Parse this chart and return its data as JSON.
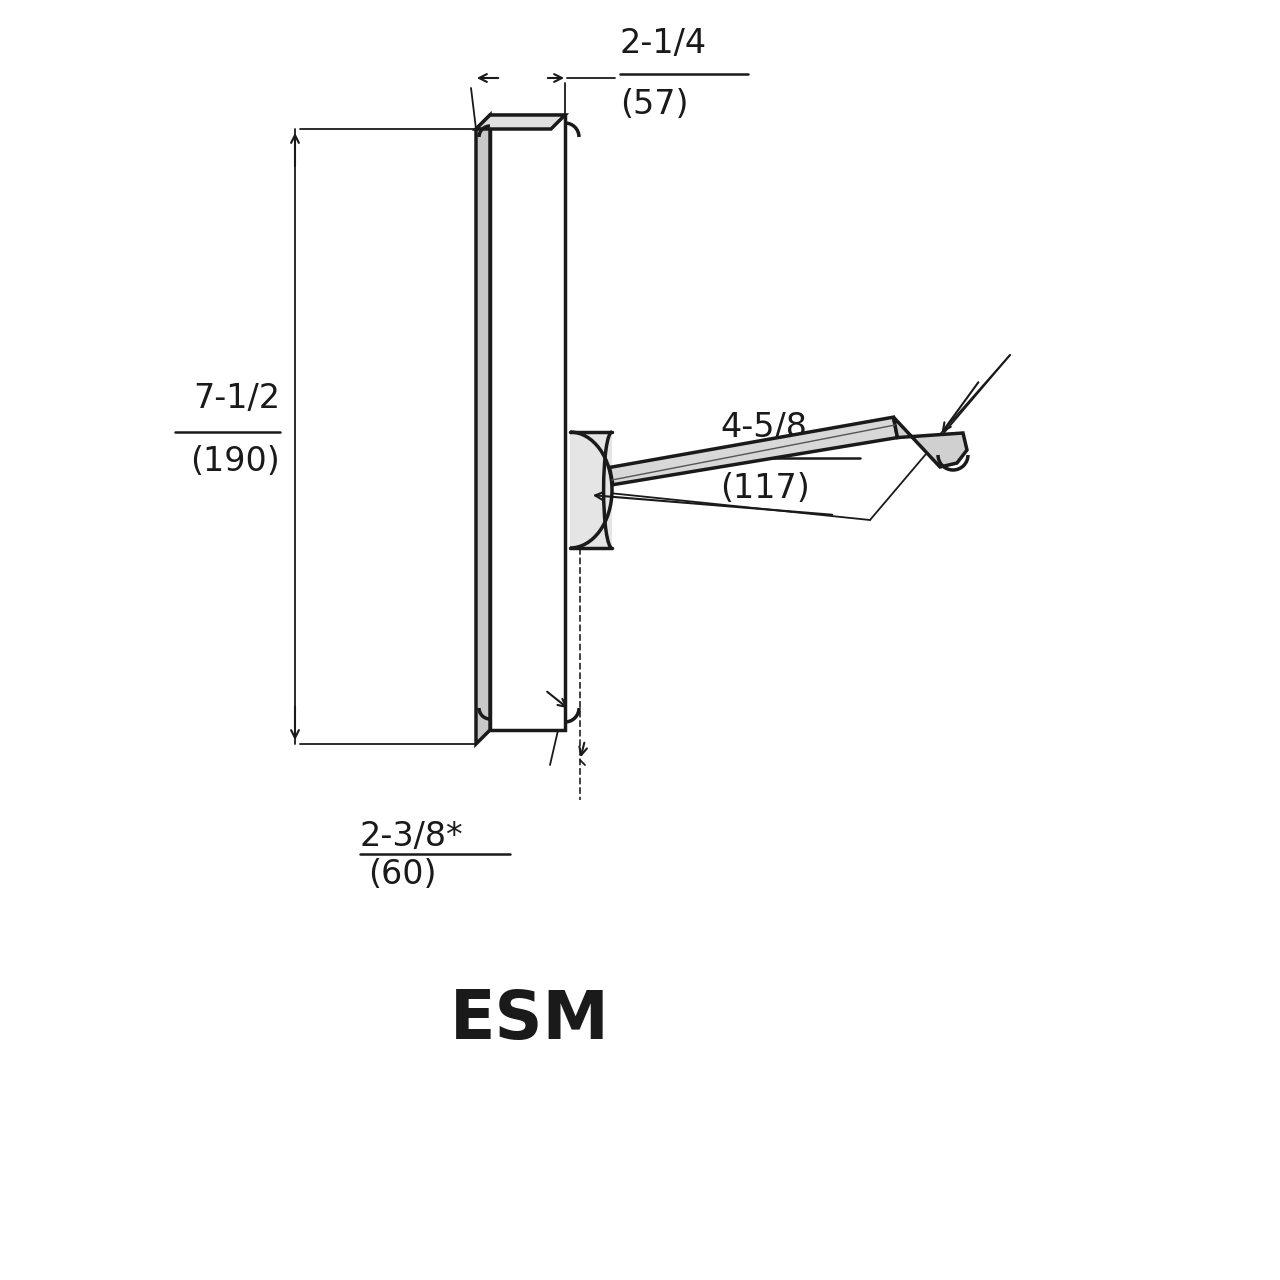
{
  "bg_color": "#ffffff",
  "line_color": "#1a1a1a",
  "label_2_1_4": "2-1/4",
  "label_57": "(57)",
  "label_7_1_2": "7-1/2",
  "label_190": "(190)",
  "label_4_5_8": "4-5/8",
  "label_117": "(117)",
  "label_2_3_8": "2-3/8*",
  "label_60": "(60)",
  "label_esm": "ESM",
  "figsize": [
    12.8,
    12.8
  ],
  "dpi": 100
}
